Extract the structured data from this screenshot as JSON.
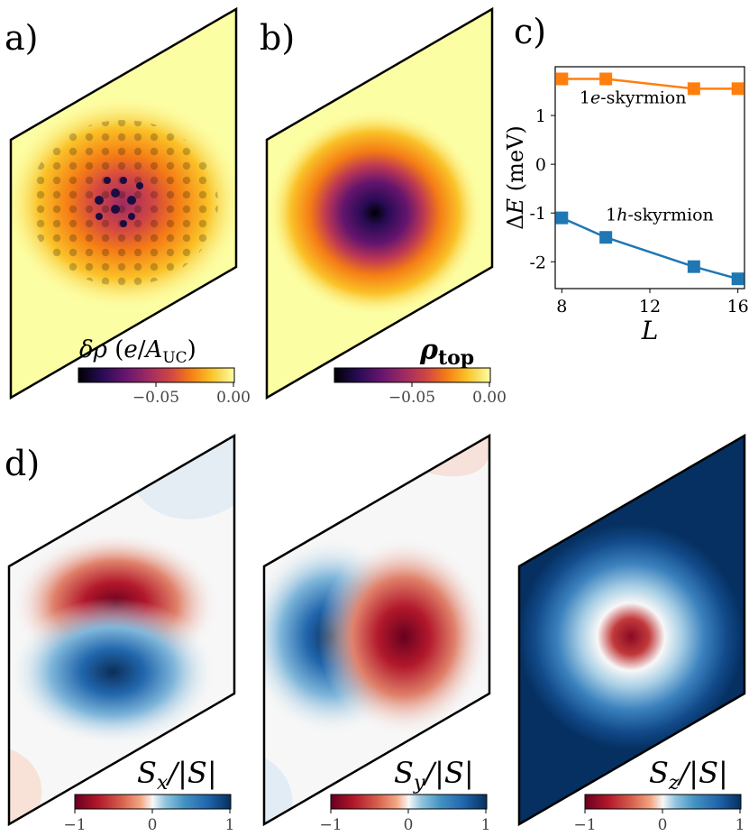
{
  "panel_labels": [
    "a)",
    "b)",
    "c)",
    "d)"
  ],
  "colors": {
    "orange": "#ff7f0e",
    "blue": "#1f77b4",
    "inferno_bg": "#fcfea4",
    "inferno_mid": "#f98e09",
    "inferno_dark": "#280b54",
    "inferno_core": "#000004",
    "rdbu_red": "#67001f",
    "rdbu_white": "#f7f7f7",
    "rdbu_blue": "#053061"
  },
  "maps": {
    "a": {
      "quantity": "δρ",
      "unit_open": "(",
      "unit_e": "e",
      "unit_slash": "/",
      "unit_A": "A",
      "unit_sub": "UC",
      "unit_close": ")",
      "colorbar_ticks": [
        "−0.05",
        "0.00"
      ]
    },
    "b": {
      "quantity": "ρ",
      "quantity_sub": "top",
      "colorbar_ticks": [
        "−0.05",
        "0.00"
      ]
    },
    "sx": {
      "S": "S",
      "comp": "x",
      "rest": "/|S|",
      "colorbar_ticks": [
        "−1",
        "0",
        "1"
      ]
    },
    "sy": {
      "S": "S",
      "comp": "y",
      "rest": "/|S|",
      "colorbar_ticks": [
        "−1",
        "0",
        "1"
      ]
    },
    "sz": {
      "S": "S",
      "comp": "z",
      "rest": "/|S|",
      "colorbar_ticks": [
        "−1",
        "0",
        "1"
      ]
    }
  },
  "chart_data": {
    "type": "line",
    "x": [
      8,
      10,
      14,
      16
    ],
    "series": [
      {
        "name": "1e-skyrmion",
        "values": [
          1.75,
          1.75,
          1.55,
          1.55
        ],
        "color": "#ff7f0e"
      },
      {
        "name": "1h-skyrmion",
        "values": [
          -1.1,
          -1.5,
          -2.1,
          -2.35
        ],
        "color": "#1f77b4"
      }
    ],
    "series_labels": [
      {
        "prefix": "1",
        "italic": "e",
        "suffix": "-skyrmion"
      },
      {
        "prefix": "1",
        "italic": "h",
        "suffix": "-skyrmion"
      }
    ],
    "xlabel": "L",
    "ylabel_delta": "Δ",
    "ylabel_E": "E",
    "ylabel_unit": "(meV)",
    "xticks": [
      8,
      12,
      16
    ],
    "xtick_labels": [
      "8",
      "12",
      "16"
    ],
    "yticks": [
      1,
      0,
      -1,
      -2
    ],
    "ytick_labels": [
      "1",
      "0",
      "-1",
      "-2"
    ],
    "xlim": [
      7.7,
      16.3
    ],
    "ylim": [
      -2.55,
      2.0
    ]
  }
}
